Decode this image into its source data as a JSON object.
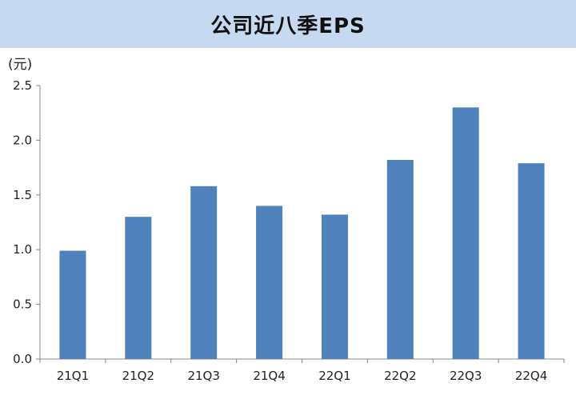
{
  "chart_data": {
    "type": "bar",
    "title": "公司近八季EPS",
    "ylabel": "(元)",
    "xlabel": "",
    "categories": [
      "21Q1",
      "21Q2",
      "21Q3",
      "21Q4",
      "22Q1",
      "22Q2",
      "22Q3",
      "22Q4"
    ],
    "values": [
      0.99,
      1.3,
      1.58,
      1.4,
      1.32,
      1.82,
      2.3,
      1.79
    ],
    "ylim": [
      0,
      2.5
    ],
    "yticks": [
      "0.0",
      "0.5",
      "1.0",
      "1.5",
      "2.0",
      "2.5"
    ],
    "grid": false,
    "colors": {
      "bar": "#4f81bd",
      "title_bg": "#c6d9f1",
      "axis": "#888888"
    }
  }
}
